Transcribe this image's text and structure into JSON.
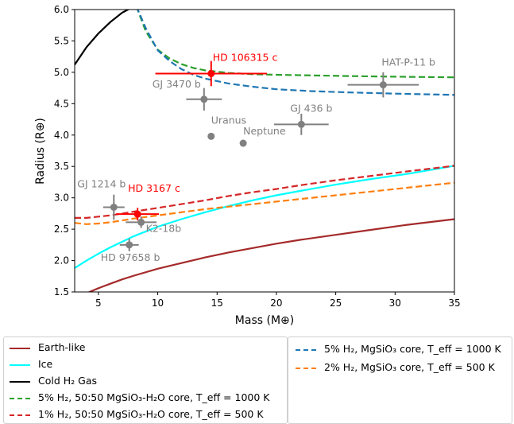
{
  "chart_data": {
    "type": "line",
    "xlabel": "Mass (M⊕)",
    "ylabel": "Radius (R⊕)",
    "xlim": [
      3,
      35
    ],
    "ylim": [
      1.5,
      6.0
    ],
    "xticks": [
      "5",
      "10",
      "15",
      "20",
      "25",
      "30",
      "35"
    ],
    "yticks": [
      "1.5",
      "2.0",
      "2.5",
      "3.0",
      "3.5",
      "4.0",
      "4.5",
      "5.0",
      "5.5",
      "6.0"
    ],
    "grid": false,
    "series": [
      {
        "name": "Earth-like",
        "color": "#a52a2a",
        "style": "solid",
        "x": [
          3,
          4,
          5,
          6,
          7,
          8,
          10,
          12,
          14,
          16,
          18,
          20,
          22,
          25,
          28,
          31,
          35
        ],
        "y": [
          1.4,
          1.48,
          1.56,
          1.63,
          1.7,
          1.76,
          1.87,
          1.96,
          2.05,
          2.13,
          2.2,
          2.27,
          2.33,
          2.41,
          2.49,
          2.57,
          2.66
        ]
      },
      {
        "name": "Ice",
        "color": "#00ffff",
        "style": "solid",
        "x": [
          3,
          4,
          5,
          6,
          7,
          8,
          10,
          12,
          14,
          16,
          18,
          20,
          22,
          25,
          28,
          31,
          35
        ],
        "y": [
          1.88,
          2.0,
          2.11,
          2.21,
          2.3,
          2.39,
          2.54,
          2.66,
          2.77,
          2.87,
          2.96,
          3.04,
          3.11,
          3.21,
          3.3,
          3.38,
          3.51
        ]
      },
      {
        "name": "Cold H₂ Gas",
        "color": "#000000",
        "style": "solid",
        "x": [
          3,
          4,
          5,
          6,
          7,
          8
        ],
        "y": [
          5.12,
          5.4,
          5.62,
          5.8,
          5.95,
          6.05
        ]
      },
      {
        "name": "5% H₂, 50:50 MgSiO₃-H₂O core, T_eff = 1000 K",
        "color": "#2ca02c",
        "style": "dashed",
        "x": [
          8.2,
          9,
          10,
          11,
          12,
          13,
          14,
          16,
          18,
          20,
          23,
          26,
          30,
          35
        ],
        "y": [
          6.05,
          5.65,
          5.36,
          5.22,
          5.13,
          5.07,
          5.03,
          4.99,
          4.97,
          4.96,
          4.95,
          4.94,
          4.93,
          4.92
        ]
      },
      {
        "name": "1% H₂, 50:50 MgSiO₃-H₂O core, T_eff = 500 K",
        "color": "#d62728",
        "style": "dashed",
        "x": [
          3,
          4,
          5,
          6,
          7,
          8,
          10,
          12,
          14,
          16,
          18,
          20,
          22,
          25,
          28,
          31,
          35
        ],
        "y": [
          2.68,
          2.68,
          2.7,
          2.72,
          2.75,
          2.78,
          2.84,
          2.9,
          2.96,
          3.03,
          3.09,
          3.14,
          3.2,
          3.28,
          3.35,
          3.42,
          3.51
        ]
      },
      {
        "name": "5% H₂, MgSiO₃ core, T_eff = 1000 K",
        "color": "#1f77b4",
        "style": "dashed",
        "x": [
          8.2,
          9,
          10,
          11,
          12,
          13,
          14,
          16,
          18,
          20,
          23,
          26,
          30,
          35
        ],
        "y": [
          6.05,
          5.7,
          5.35,
          5.18,
          5.05,
          4.96,
          4.9,
          4.82,
          4.77,
          4.73,
          4.7,
          4.68,
          4.66,
          4.64
        ]
      },
      {
        "name": "2% H₂, MgSiO₃ core, T_eff = 500 K",
        "color": "#ff7f0e",
        "style": "dashed",
        "x": [
          3,
          4,
          5,
          6,
          7,
          8,
          10,
          12,
          14,
          16,
          18,
          20,
          22,
          25,
          28,
          31,
          35
        ],
        "y": [
          2.6,
          2.58,
          2.59,
          2.61,
          2.64,
          2.67,
          2.72,
          2.77,
          2.82,
          2.86,
          2.9,
          2.94,
          2.98,
          3.04,
          3.1,
          3.16,
          3.24
        ]
      }
    ],
    "points": [
      {
        "label": "HD 106315 c",
        "x": 14.5,
        "y": 4.98,
        "xerr": 4.7,
        "yerr": 0.2,
        "color": "#ff0000"
      },
      {
        "label": "HD 3167 c",
        "x": 8.3,
        "y": 2.74,
        "xerr": 1.8,
        "yerr": 0.1,
        "color": "#ff0000"
      },
      {
        "label": "HAT-P-11 b",
        "x": 29.0,
        "y": 4.8,
        "xerr": 3.0,
        "yerr": 0.2,
        "color": "#808080"
      },
      {
        "label": "GJ 3470 b",
        "x": 13.9,
        "y": 4.57,
        "xerr": 1.5,
        "yerr": 0.18,
        "color": "#808080"
      },
      {
        "label": "GJ 436 b",
        "x": 22.1,
        "y": 4.17,
        "xerr": 2.3,
        "yerr": 0.17,
        "color": "#808080"
      },
      {
        "label": "Uranus",
        "x": 14.5,
        "y": 3.98,
        "xerr": 0,
        "yerr": 0,
        "color": "#808080"
      },
      {
        "label": "Neptune",
        "x": 17.2,
        "y": 3.87,
        "xerr": 0,
        "yerr": 0,
        "color": "#808080"
      },
      {
        "label": "GJ 1214 b",
        "x": 6.3,
        "y": 2.85,
        "xerr": 0.9,
        "yerr": 0.2,
        "color": "#808080"
      },
      {
        "label": "K2-18b",
        "x": 8.6,
        "y": 2.61,
        "xerr": 1.3,
        "yerr": 0.09,
        "color": "#808080"
      },
      {
        "label": "HD 97658 b",
        "x": 7.6,
        "y": 2.25,
        "xerr": 0.8,
        "yerr": 0.1,
        "color": "#808080"
      }
    ]
  },
  "legend": {
    "left": [
      {
        "label": "Earth-like",
        "color": "#a52a2a",
        "style": "solid"
      },
      {
        "label": "Ice",
        "color": "#00ffff",
        "style": "solid"
      },
      {
        "label": "Cold H₂ Gas",
        "color": "#000000",
        "style": "solid"
      },
      {
        "label": "5% H₂, 50:50 MgSiO₃-H₂O core, T_eff = 1000 K",
        "color": "#2ca02c",
        "style": "dashed"
      },
      {
        "label": "1% H₂, 50:50 MgSiO₃-H₂O core, T_eff = 500 K",
        "color": "#d62728",
        "style": "dashed"
      }
    ],
    "right": [
      {
        "label": "5% H₂, MgSiO₃ core, T_eff = 1000 K",
        "color": "#1f77b4",
        "style": "dashed"
      },
      {
        "label": "2% H₂, MgSiO₃ core, T_eff = 500 K",
        "color": "#ff7f0e",
        "style": "dashed"
      }
    ]
  }
}
